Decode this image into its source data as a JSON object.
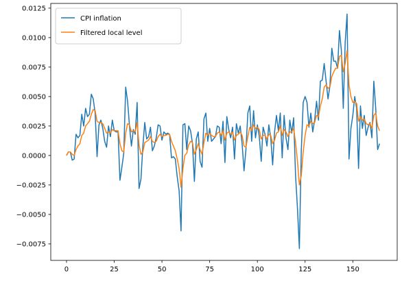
{
  "chart_data": {
    "type": "line",
    "title": "",
    "xlabel": "",
    "ylabel": "",
    "xlim": [
      -8.25,
      173.25
    ],
    "ylim": [
      -0.0089,
      0.0129
    ],
    "xticks": [
      0,
      25,
      50,
      75,
      100,
      125,
      150
    ],
    "xtick_labels": [
      "0",
      "25",
      "50",
      "75",
      "100",
      "125",
      "150"
    ],
    "yticks": [
      -0.0075,
      -0.005,
      -0.0025,
      0.0,
      0.0025,
      0.005,
      0.0075,
      0.01,
      0.0125
    ],
    "ytick_labels": [
      "−0.0075",
      "−0.0050",
      "−0.0025",
      "0.0000",
      "0.0025",
      "0.0050",
      "0.0075",
      "0.0100",
      "0.0125"
    ],
    "grid": false,
    "legend_position": "upper-left",
    "series": [
      {
        "name": "CPI inflation",
        "color": "#1f77b4",
        "values": [
          0.0,
          0.0003,
          0.0003,
          -0.0004,
          -0.0003,
          0.0018,
          0.0015,
          0.0017,
          0.0035,
          0.0025,
          0.004,
          0.0033,
          0.0035,
          0.0052,
          0.0048,
          0.0036,
          -0.0001,
          0.0026,
          0.003,
          0.0023,
          0.0012,
          0.0007,
          0.0025,
          0.0016,
          0.003,
          0.0021,
          0.002,
          0.002,
          -0.0021,
          -0.001,
          0.0002,
          0.0058,
          0.0046,
          0.0025,
          0.0008,
          0.0022,
          0.0018,
          0.0045,
          -0.0028,
          -0.002,
          0.0008,
          0.0028,
          0.0014,
          0.0016,
          0.0024,
          0.0004,
          0.0008,
          0.0015,
          0.0026,
          0.0025,
          0.0013,
          0.002,
          0.0018,
          0.0019,
          0.0018,
          -0.0002,
          -0.0001,
          -0.0003,
          -0.0018,
          -0.003,
          -0.0064,
          0.0026,
          0.0027,
          0.0005,
          0.0025,
          0.0021,
          0.001,
          -0.0022,
          0.0014,
          0.002,
          -0.0005,
          -0.001,
          0.0031,
          0.0036,
          0.0012,
          0.0023,
          0.0012,
          0.0014,
          0.0016,
          0.0025,
          0.0024,
          0.001,
          0.0029,
          -0.0006,
          0.0033,
          0.0022,
          0.0015,
          0.0024,
          -0.0003,
          0.0027,
          0.0019,
          0.0025,
          0.001,
          -0.0013,
          0.0005,
          0.0036,
          0.0042,
          0.0012,
          0.0038,
          0.0015,
          0.0026,
          0.0016,
          -0.0005,
          0.0024,
          0.0018,
          0.0008,
          0.0026,
          0.0015,
          -0.0008,
          0.002,
          0.0034,
          0.0021,
          0.0036,
          -0.0002,
          0.0034,
          0.0015,
          0.0005,
          0.003,
          0.0019,
          0.0032,
          -0.0017,
          -0.0045,
          -0.0079,
          0.0004,
          0.0045,
          0.005,
          0.0045,
          0.0024,
          0.0036,
          0.002,
          0.003,
          0.0046,
          0.003,
          0.0063,
          0.0064,
          0.0078,
          0.0063,
          0.0048,
          0.0059,
          0.0091,
          0.008,
          0.008,
          0.0074,
          0.0106,
          0.0089,
          0.004,
          0.0096,
          0.012,
          -0.0003,
          0.0023,
          0.0034,
          0.005,
          0.004,
          -0.0011,
          0.0042,
          0.0023,
          0.0034,
          0.0017,
          0.0024,
          0.0028,
          0.0015,
          0.0063,
          0.004,
          0.0005,
          0.001
        ]
      },
      {
        "name": "Filtered local level",
        "color": "#ff7f0e",
        "values": [
          0.0,
          0.0003,
          0.0003,
          0.0001,
          0.0,
          0.0005,
          0.0008,
          0.001,
          0.0017,
          0.0019,
          0.0025,
          0.0027,
          0.0029,
          0.0035,
          0.0039,
          0.0038,
          0.0029,
          0.0028,
          0.0028,
          0.0027,
          0.0023,
          0.0019,
          0.002,
          0.0019,
          0.0022,
          0.0021,
          0.0021,
          0.0021,
          0.001,
          0.0004,
          0.0003,
          0.0019,
          0.0027,
          0.0026,
          0.002,
          0.0021,
          0.002,
          0.0028,
          0.0009,
          0.0001,
          0.0003,
          0.0011,
          0.0012,
          0.0013,
          0.0016,
          0.0012,
          0.0011,
          0.0012,
          0.0016,
          0.0018,
          0.0016,
          0.0017,
          0.0017,
          0.0018,
          0.0018,
          0.0012,
          0.0008,
          0.0004,
          -0.0003,
          -0.0011,
          -0.0027,
          -0.0011,
          0.0,
          0.0002,
          0.0009,
          0.0012,
          0.0011,
          0.0001,
          0.0005,
          0.001,
          0.0005,
          0.0001,
          0.0011,
          0.0019,
          0.0017,
          0.0019,
          0.0017,
          0.0016,
          0.0016,
          0.0019,
          0.002,
          0.0017,
          0.0021,
          0.0013,
          0.0019,
          0.002,
          0.0018,
          0.002,
          0.0013,
          0.0017,
          0.0018,
          0.002,
          0.0017,
          0.0008,
          0.0007,
          0.0016,
          0.0024,
          0.0021,
          0.0026,
          0.0023,
          0.0024,
          0.0022,
          0.0014,
          0.0017,
          0.0017,
          0.0014,
          0.0018,
          0.0017,
          0.001,
          0.0013,
          0.0019,
          0.002,
          0.0025,
          0.0017,
          0.0022,
          0.002,
          0.0016,
          0.002,
          0.002,
          0.0023,
          0.0011,
          -0.0005,
          -0.0025,
          -0.0017,
          0.0003,
          0.0017,
          0.0026,
          0.0025,
          0.0029,
          0.0027,
          0.0028,
          0.0034,
          0.0033,
          0.0042,
          0.0048,
          0.0058,
          0.006,
          0.0057,
          0.0058,
          0.0067,
          0.0071,
          0.0074,
          0.0074,
          0.0084,
          0.0085,
          0.0071,
          0.0078,
          0.0089,
          0.006,
          0.005,
          0.0045,
          0.0046,
          0.0044,
          0.0029,
          0.0033,
          0.003,
          0.0031,
          0.0027,
          0.0026,
          0.0027,
          0.0023,
          0.0034,
          0.0036,
          0.0025,
          0.0021
        ]
      }
    ]
  }
}
